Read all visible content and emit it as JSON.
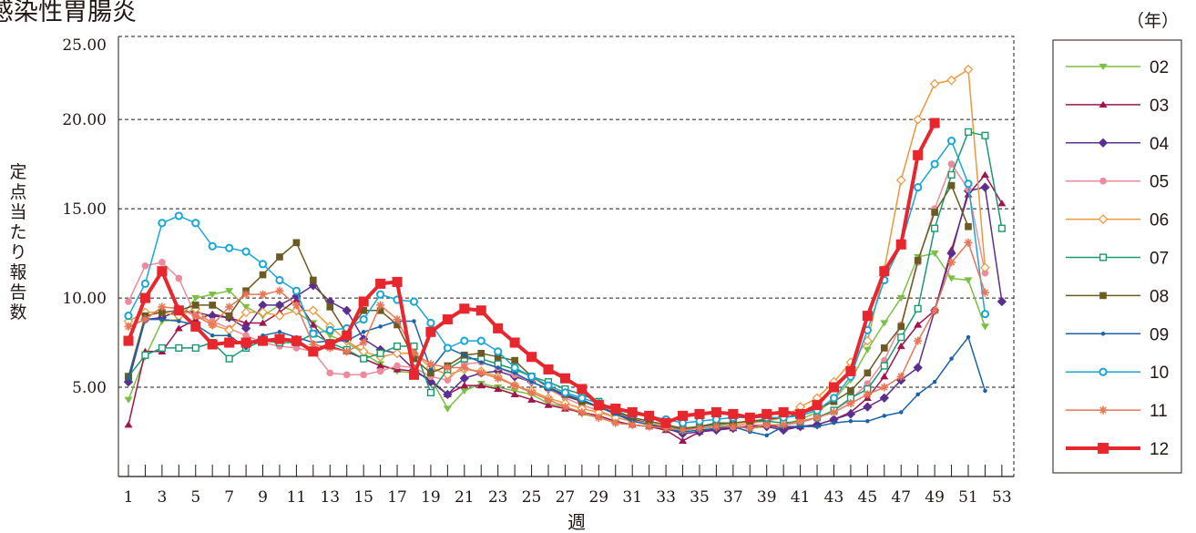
{
  "chart_data": {
    "type": "line",
    "title": "感染性胃腸炎",
    "xlabel": "週",
    "ylabel": "定点当たり報告数",
    "legend_title": "（年）",
    "legend_position": "right",
    "grid": "horizontal-dashed",
    "xlim": [
      1,
      53
    ],
    "ylim": [
      0,
      25
    ],
    "x_tick_labels": [
      "1",
      "3",
      "5",
      "7",
      "9",
      "11",
      "13",
      "15",
      "17",
      "19",
      "21",
      "23",
      "25",
      "27",
      "29",
      "31",
      "33",
      "35",
      "37",
      "39",
      "41",
      "43",
      "45",
      "47",
      "49",
      "51",
      "53"
    ],
    "y_tick_labels": [
      "25.00",
      "20.00",
      "15.00",
      "10.00",
      "5.00"
    ],
    "y_ticks": [
      25,
      20,
      15,
      10,
      5
    ],
    "series": [
      {
        "name": "02",
        "color": "#7ac143",
        "marker": "triangle-down",
        "values": [
          4.3,
          6.7,
          8.7,
          8.8,
          10.0,
          10.2,
          10.4,
          9.5,
          9.0,
          9.6,
          9.2,
          8.6,
          7.9,
          7.5,
          6.9,
          6.3,
          5.9,
          5.8,
          5.5,
          3.8,
          4.8,
          5.2,
          5.0,
          4.8,
          4.6,
          4.1,
          3.9,
          3.5,
          3.3,
          3.0,
          2.9,
          2.8,
          2.6,
          2.6,
          2.7,
          2.8,
          2.8,
          2.7,
          2.8,
          2.9,
          3.2,
          3.6,
          4.3,
          5.4,
          7.1,
          8.6,
          10.0,
          12.3,
          12.5,
          11.1,
          11.0,
          8.4,
          null
        ]
      },
      {
        "name": "03",
        "color": "#a0154e",
        "marker": "triangle-up",
        "values": [
          2.9,
          7.0,
          7.0,
          8.3,
          8.8,
          9.1,
          8.9,
          8.6,
          8.6,
          9.2,
          9.9,
          8.5,
          7.3,
          7.0,
          6.6,
          6.2,
          6.0,
          5.9,
          5.4,
          4.6,
          5.1,
          5.1,
          4.9,
          4.6,
          4.3,
          4.0,
          3.8,
          3.6,
          3.4,
          3.1,
          2.9,
          2.8,
          2.6,
          2.0,
          2.5,
          2.7,
          2.7,
          2.8,
          2.9,
          2.7,
          2.8,
          2.9,
          3.2,
          3.6,
          4.4,
          5.6,
          7.3,
          8.5,
          9.3,
          12.7,
          15.8,
          16.9,
          15.3
        ]
      },
      {
        "name": "04",
        "color": "#5b2f8f",
        "marker": "diamond",
        "values": [
          5.3,
          8.8,
          8.9,
          9.3,
          9.2,
          9.0,
          8.9,
          8.3,
          9.6,
          9.6,
          10.1,
          10.7,
          9.8,
          9.3,
          7.7,
          7.1,
          6.9,
          6.0,
          5.3,
          4.6,
          5.5,
          5.8,
          5.9,
          5.6,
          5.3,
          4.9,
          4.5,
          4.2,
          3.9,
          3.5,
          3.2,
          3.0,
          2.7,
          2.4,
          2.5,
          2.6,
          2.7,
          2.8,
          2.8,
          2.6,
          2.8,
          2.9,
          3.2,
          3.5,
          3.9,
          4.4,
          5.4,
          6.1,
          9.3,
          12.5,
          16.0,
          16.2,
          9.8
        ]
      },
      {
        "name": "05",
        "color": "#ed8b9d",
        "marker": "circle",
        "values": [
          9.8,
          11.8,
          12.0,
          11.1,
          9.0,
          8.7,
          8.3,
          7.9,
          7.5,
          7.3,
          7.2,
          7.0,
          5.8,
          5.7,
          5.7,
          5.9,
          6.2,
          6.1,
          5.6,
          5.4,
          6.3,
          6.4,
          6.1,
          5.7,
          5.3,
          4.9,
          4.4,
          4.0,
          3.7,
          3.3,
          3.1,
          3.0,
          2.8,
          2.6,
          2.7,
          2.8,
          2.8,
          2.9,
          2.9,
          2.9,
          3.0,
          3.3,
          3.7,
          4.3,
          5.2,
          6.5,
          8.5,
          12.0,
          15.0,
          17.5,
          16.1,
          11.4,
          null
        ]
      },
      {
        "name": "06",
        "color": "#f0963a",
        "marker": "diamond-open",
        "values": [
          8.7,
          9.2,
          9.2,
          9.0,
          9.4,
          8.5,
          8.2,
          9.2,
          9.2,
          9.0,
          9.3,
          9.3,
          8.4,
          7.6,
          7.0,
          6.7,
          6.9,
          6.9,
          6.1,
          5.7,
          6.0,
          5.9,
          5.6,
          5.1,
          4.8,
          4.4,
          4.1,
          3.8,
          3.6,
          3.3,
          3.1,
          3.0,
          2.8,
          2.6,
          2.7,
          2.8,
          2.9,
          3.0,
          3.1,
          3.3,
          3.9,
          4.4,
          5.3,
          6.4,
          7.6,
          11.6,
          16.6,
          20.0,
          22.0,
          22.2,
          22.8,
          11.7,
          null
        ]
      },
      {
        "name": "07",
        "color": "#1a9a6c",
        "marker": "square-open",
        "values": [
          5.6,
          6.8,
          7.2,
          7.2,
          7.2,
          7.5,
          6.6,
          7.2,
          7.6,
          7.5,
          7.5,
          8.0,
          7.5,
          7.1,
          6.6,
          6.9,
          7.3,
          7.3,
          4.7,
          6.0,
          6.6,
          6.6,
          6.3,
          6.0,
          5.6,
          5.3,
          4.9,
          4.6,
          4.2,
          3.7,
          3.3,
          3.1,
          2.9,
          2.6,
          2.8,
          2.9,
          3.0,
          3.1,
          3.1,
          3.0,
          3.1,
          3.3,
          3.7,
          4.4,
          4.9,
          6.2,
          7.8,
          9.4,
          13.9,
          16.9,
          19.3,
          19.1,
          13.9
        ]
      },
      {
        "name": "08",
        "color": "#6b5a21",
        "marker": "square",
        "values": [
          5.6,
          9.0,
          9.2,
          9.3,
          9.6,
          9.6,
          9.0,
          10.4,
          11.3,
          12.3,
          13.1,
          11.0,
          9.5,
          8.0,
          9.3,
          9.3,
          8.5,
          6.6,
          5.8,
          6.2,
          6.8,
          6.9,
          6.7,
          6.5,
          5.6,
          5.0,
          4.6,
          4.2,
          3.9,
          3.6,
          3.3,
          3.1,
          2.9,
          2.7,
          2.8,
          3.0,
          3.0,
          3.1,
          3.2,
          3.3,
          3.5,
          3.8,
          4.2,
          4.8,
          5.8,
          7.2,
          8.4,
          12.1,
          14.8,
          16.3,
          14.0,
          null,
          null
        ]
      },
      {
        "name": "09",
        "color": "#1a63a8",
        "marker": "dot",
        "values": [
          5.5,
          8.8,
          8.8,
          8.7,
          8.5,
          7.9,
          7.9,
          7.2,
          7.9,
          8.1,
          7.8,
          7.5,
          7.6,
          7.6,
          8.1,
          8.4,
          8.7,
          8.7,
          6.0,
          7.2,
          6.8,
          6.4,
          6.1,
          5.8,
          5.3,
          4.9,
          4.6,
          4.3,
          3.9,
          3.5,
          3.1,
          2.9,
          2.7,
          2.5,
          2.6,
          2.7,
          2.8,
          2.5,
          2.3,
          2.8,
          2.8,
          2.8,
          3.0,
          3.1,
          3.1,
          3.4,
          3.6,
          4.6,
          5.3,
          6.6,
          7.8,
          4.8,
          null
        ]
      },
      {
        "name": "10",
        "color": "#19a6d8",
        "marker": "circle-open",
        "values": [
          9.0,
          10.8,
          14.2,
          14.6,
          14.2,
          12.9,
          12.8,
          12.6,
          11.9,
          11.0,
          10.4,
          8.0,
          8.2,
          8.3,
          8.8,
          10.2,
          9.9,
          9.8,
          8.6,
          7.2,
          7.6,
          7.6,
          7.0,
          6.1,
          5.6,
          5.1,
          4.7,
          4.4,
          4.1,
          3.8,
          3.5,
          3.4,
          3.2,
          3.0,
          3.1,
          3.2,
          3.3,
          3.3,
          3.3,
          3.3,
          3.4,
          3.7,
          4.4,
          5.6,
          8.2,
          11.0,
          13.0,
          16.2,
          17.5,
          18.8,
          16.4,
          9.1,
          null
        ]
      },
      {
        "name": "11",
        "color": "#ea7656",
        "marker": "asterisk",
        "values": [
          8.4,
          8.8,
          9.5,
          9.4,
          9.0,
          8.5,
          9.5,
          10.2,
          10.2,
          10.4,
          9.6,
          7.4,
          7.2,
          7.0,
          7.5,
          9.6,
          8.8,
          6.9,
          6.3,
          6.1,
          6.1,
          5.8,
          5.5,
          5.1,
          4.7,
          4.3,
          3.9,
          3.6,
          3.3,
          3.0,
          2.9,
          2.8,
          2.7,
          2.6,
          2.7,
          2.8,
          2.8,
          2.7,
          2.9,
          2.9,
          3.1,
          3.3,
          3.6,
          4.1,
          4.6,
          5.0,
          5.6,
          7.6,
          9.3,
          12.0,
          13.1,
          10.3,
          null
        ]
      },
      {
        "name": "12",
        "color": "#e8262e",
        "marker": "square",
        "bold": true,
        "values": [
          7.6,
          10.0,
          11.5,
          9.3,
          8.4,
          7.4,
          7.5,
          7.5,
          7.6,
          7.7,
          7.6,
          7.0,
          7.4,
          7.9,
          9.8,
          10.8,
          10.9,
          5.7,
          8.1,
          8.8,
          9.4,
          9.3,
          8.3,
          7.5,
          6.7,
          6.0,
          5.5,
          4.9,
          4.0,
          3.8,
          3.6,
          3.4,
          3.0,
          3.4,
          3.5,
          3.6,
          3.5,
          3.3,
          3.5,
          3.6,
          3.5,
          4.0,
          5.0,
          5.9,
          9.0,
          11.5,
          13.0,
          18.0,
          19.8,
          null,
          null,
          null,
          null
        ]
      }
    ]
  }
}
